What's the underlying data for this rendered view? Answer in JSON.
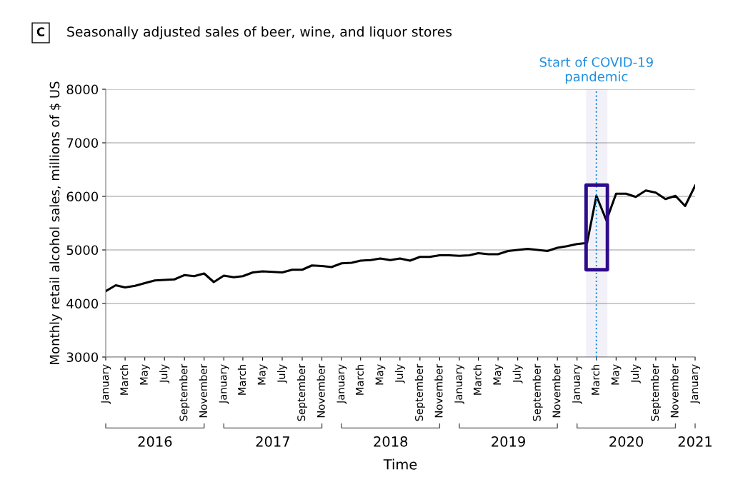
{
  "chart_data": {
    "type": "line",
    "title": "Seasonally adjusted sales of beer, wine, and liquor stores",
    "xlabel": "Time",
    "ylabel": "Monthly retail alcohol sales, millions of $ US",
    "x": [
      "2016-01",
      "2016-02",
      "2016-03",
      "2016-04",
      "2016-05",
      "2016-06",
      "2016-07",
      "2016-08",
      "2016-09",
      "2016-10",
      "2016-11",
      "2016-12",
      "2017-01",
      "2017-02",
      "2017-03",
      "2017-04",
      "2017-05",
      "2017-06",
      "2017-07",
      "2017-08",
      "2017-09",
      "2017-10",
      "2017-11",
      "2017-12",
      "2018-01",
      "2018-02",
      "2018-03",
      "2018-04",
      "2018-05",
      "2018-06",
      "2018-07",
      "2018-08",
      "2018-09",
      "2018-10",
      "2018-11",
      "2018-12",
      "2019-01",
      "2019-02",
      "2019-03",
      "2019-04",
      "2019-05",
      "2019-06",
      "2019-07",
      "2019-08",
      "2019-09",
      "2019-10",
      "2019-11",
      "2019-12",
      "2020-01",
      "2020-02",
      "2020-03",
      "2020-04",
      "2020-05",
      "2020-06",
      "2020-07",
      "2020-08",
      "2020-09",
      "2020-10",
      "2020-11",
      "2020-12",
      "2021-01"
    ],
    "series": [
      {
        "color": "#000000",
        "values": [
          4230,
          4340,
          4300,
          4330,
          4380,
          4430,
          4440,
          4450,
          4530,
          4510,
          4560,
          4400,
          4520,
          4490,
          4510,
          4580,
          4600,
          4590,
          4580,
          4630,
          4630,
          4710,
          4700,
          4680,
          4750,
          4760,
          4800,
          4810,
          4840,
          4810,
          4840,
          4800,
          4870,
          4870,
          4900,
          4900,
          4890,
          4900,
          4940,
          4920,
          4920,
          4980,
          5000,
          5020,
          5000,
          4980,
          5040,
          5070,
          5110,
          5130,
          6010,
          5550,
          6050,
          6050,
          5990,
          6110,
          6070,
          5950,
          6010,
          5820,
          6200
        ]
      }
    ],
    "xlim": [
      "2016-01",
      "2021-01"
    ],
    "xticks": [
      {
        "value": "2016-01",
        "label": "January"
      },
      {
        "value": "2016-03",
        "label": "March"
      },
      {
        "value": "2016-05",
        "label": "May"
      },
      {
        "value": "2016-07",
        "label": "July"
      },
      {
        "value": "2016-09",
        "label": "September"
      },
      {
        "value": "2016-11",
        "label": "November"
      },
      {
        "value": "2017-01",
        "label": "January"
      },
      {
        "value": "2017-03",
        "label": "March"
      },
      {
        "value": "2017-05",
        "label": "May"
      },
      {
        "value": "2017-07",
        "label": "July"
      },
      {
        "value": "2017-09",
        "label": "September"
      },
      {
        "value": "2017-11",
        "label": "November"
      },
      {
        "value": "2018-01",
        "label": "January"
      },
      {
        "value": "2018-03",
        "label": "March"
      },
      {
        "value": "2018-05",
        "label": "May"
      },
      {
        "value": "2018-07",
        "label": "July"
      },
      {
        "value": "2018-09",
        "label": "September"
      },
      {
        "value": "2018-11",
        "label": "November"
      },
      {
        "value": "2019-01",
        "label": "January"
      },
      {
        "value": "2019-03",
        "label": "March"
      },
      {
        "value": "2019-05",
        "label": "May"
      },
      {
        "value": "2019-07",
        "label": "July"
      },
      {
        "value": "2019-09",
        "label": "September"
      },
      {
        "value": "2019-11",
        "label": "November"
      },
      {
        "value": "2020-01",
        "label": "January"
      },
      {
        "value": "2020-03",
        "label": "March"
      },
      {
        "value": "2020-05",
        "label": "May"
      },
      {
        "value": "2020-07",
        "label": "July"
      },
      {
        "value": "2020-09",
        "label": "September"
      },
      {
        "value": "2020-11",
        "label": "November"
      },
      {
        "value": "2021-01",
        "label": "January"
      }
    ],
    "ylim": [
      3000,
      8000
    ],
    "yticks": [
      3000,
      4000,
      5000,
      6000,
      7000,
      8000
    ],
    "grid": "y",
    "ref_lines": [
      {
        "axis": "x",
        "value": "2020-03",
        "label": "Start of COVID-19\npandemic",
        "color": "#1e8fe0",
        "line_style": "dotted"
      }
    ],
    "bands": [
      {
        "axis": "x",
        "from": "2020-02",
        "to": "2020-04",
        "color": "#2e0a8c"
      }
    ],
    "annotations": [
      "C",
      "2016",
      "2017",
      "2018",
      "2019",
      "2020",
      "2021"
    ]
  }
}
